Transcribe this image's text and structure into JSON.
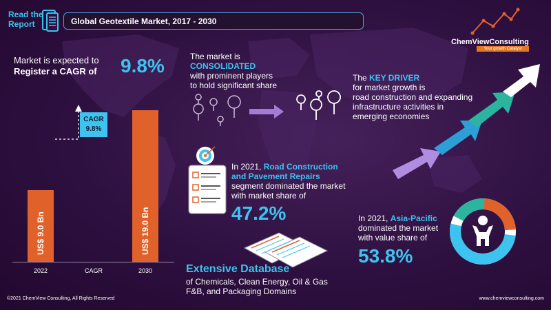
{
  "header": {
    "read_report_line1": "Read the",
    "read_report_line2": "Report",
    "title": "Global Geotextile Market, 2017  - 2030"
  },
  "logo": {
    "name": "ChemViewConsulting",
    "tagline": "Your growth Catalyst"
  },
  "cagr_block": {
    "line1": "Market is expected to",
    "line2": "Register a CAGR of",
    "value": "9.8%"
  },
  "bar_chart": {
    "bars": [
      {
        "category": "2022",
        "value": 9.0,
        "label": "US$ 9.0 Bn"
      },
      {
        "category": "2030",
        "value": 19.0,
        "label": "US$ 19.0 Bn"
      }
    ],
    "middle_category": "CAGR",
    "cagr_tag_line1": "CAGR",
    "cagr_tag_line2": "9.8%"
  },
  "consolidated": {
    "line1": "The market is",
    "line2": "CONSOLIDATED",
    "line3": "with prominent players",
    "line4": "to hold significant share"
  },
  "key_driver": {
    "line1_pre": "The ",
    "line1_hl": "KEY DRIVER",
    "line2": "for market growth is",
    "line3": "road construction and expanding",
    "line4": "infrastructure activities in",
    "line5": "emerging economies"
  },
  "road": {
    "line1_pre": "In 2021, ",
    "line1_hl": "Road Construction",
    "line2": "and Pavement Repairs",
    "line3": "segment dominated the market",
    "line4": "with market share of",
    "value": "47.2%"
  },
  "asia": {
    "line1_pre": "In 2021, ",
    "line1_hl": "Asia-Pacific",
    "line2": "dominated the market",
    "line3": "with value share of",
    "value": "53.8%"
  },
  "database": {
    "title": "Extensive Database",
    "line2": "of Chemicals, Clean Energy, Oil & Gas",
    "line3": "F&B, and Packaging Domains"
  },
  "donut": {
    "share": 53.8,
    "colors": [
      "#e0622a",
      "#3cc3f0",
      "#2bb5a0"
    ]
  },
  "colors": {
    "accent": "#3cc3f0",
    "bar": "#e0622a",
    "background": "#2e1040"
  },
  "footer": {
    "left": "©2021  ChemView  Consulting,  All  Rights Reserved",
    "right": "www.chemviewconsulting.com"
  }
}
